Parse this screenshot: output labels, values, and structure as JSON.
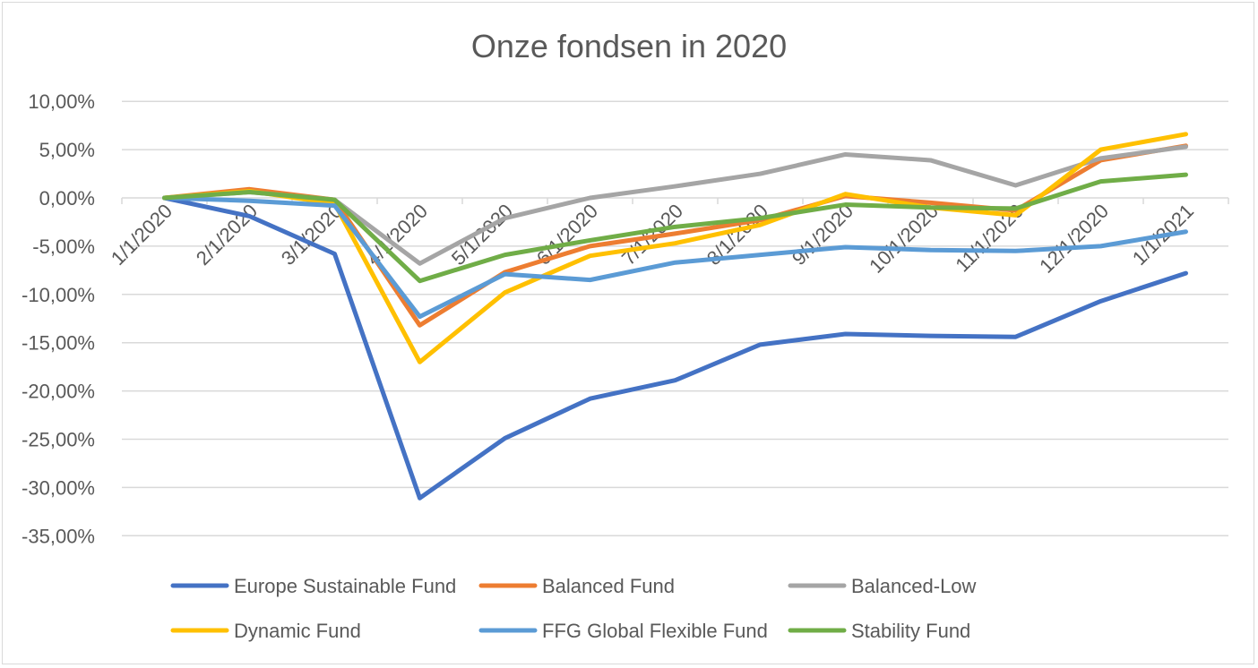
{
  "chart_data": {
    "type": "line",
    "title": "Onze fondsen in 2020",
    "xlabel": "",
    "ylabel": "",
    "categories": [
      "1/1/2020",
      "2/1/2020",
      "3/1/2020",
      "4/1/2020",
      "5/1/2020",
      "6/1/2020",
      "7/1/2020",
      "8/1/2020",
      "9/1/2020",
      "10/1/2020",
      "11/1/2020",
      "12/1/2020",
      "1/1/2021"
    ],
    "ylim": [
      -35,
      10
    ],
    "yticks": [
      10,
      5,
      0,
      -5,
      -10,
      -15,
      -20,
      -25,
      -30,
      -35
    ],
    "ytick_labels": [
      "10,00%",
      "5,00%",
      "0,00%",
      "-5,00%",
      "-10,00%",
      "-15,00%",
      "-20,00%",
      "-25,00%",
      "-30,00%",
      "-35,00%"
    ],
    "grid": true,
    "legend_position": "bottom",
    "series": [
      {
        "name": "Europe Sustainable Fund",
        "color": "#4472c4",
        "values": [
          0,
          -1.9,
          -5.8,
          -31.1,
          -24.9,
          -20.8,
          -18.9,
          -15.2,
          -14.1,
          -14.3,
          -14.4,
          -10.7,
          -7.8
        ]
      },
      {
        "name": "Balanced Fund",
        "color": "#ed7d31",
        "values": [
          0,
          0.9,
          -0.2,
          -13.2,
          -7.7,
          -5.0,
          -3.7,
          -2.3,
          0.2,
          -0.5,
          -1.3,
          3.9,
          5.4
        ]
      },
      {
        "name": "Balanced-Low",
        "color": "#a5a5a5",
        "values": [
          0,
          0.6,
          -0.2,
          -6.8,
          -2.1,
          0.0,
          1.2,
          2.5,
          4.5,
          3.9,
          1.3,
          4.1,
          5.3
        ]
      },
      {
        "name": "Dynamic Fund",
        "color": "#ffc000",
        "values": [
          0,
          0.7,
          -0.6,
          -17.0,
          -9.8,
          -6.0,
          -4.7,
          -2.8,
          0.4,
          -1.0,
          -1.8,
          5.0,
          6.6
        ]
      },
      {
        "name": "FFG Global Flexible Fund",
        "color": "#5b9bd5",
        "values": [
          0,
          -0.3,
          -0.8,
          -12.3,
          -7.9,
          -8.5,
          -6.7,
          -5.9,
          -5.1,
          -5.4,
          -5.5,
          -5.0,
          -3.5
        ]
      },
      {
        "name": "Stability Fund",
        "color": "#70ad47",
        "values": [
          0,
          0.6,
          -0.2,
          -8.6,
          -5.9,
          -4.4,
          -3.0,
          -2.1,
          -0.7,
          -1.0,
          -1.1,
          1.7,
          2.4
        ]
      }
    ]
  }
}
